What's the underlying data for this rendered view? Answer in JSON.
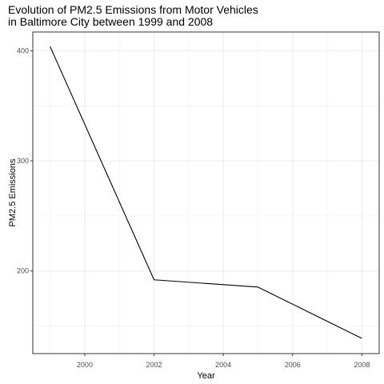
{
  "chart_data": {
    "type": "line",
    "title_lines": [
      "Evolution of PM2.5 Emissions from Motor Vehicles",
      "in Baltimore City between 1999 and 2008"
    ],
    "xlabel": "Year",
    "ylabel": "PM2.5 Emissions",
    "x": [
      1999,
      2002,
      2005,
      2008
    ],
    "series": [
      {
        "values": [
          403.8,
          192.0,
          185.4,
          138.8
        ]
      }
    ],
    "xlim": [
      1998.5,
      2008.5
    ],
    "ylim": [
      125,
      417
    ],
    "x_ticks": [
      2000,
      2002,
      2004,
      2006,
      2008
    ],
    "y_ticks": [
      200,
      300,
      400
    ],
    "grid": true,
    "line_color": "#000000",
    "grid_color": "#ebebeb",
    "panel_border_color": "#333333"
  }
}
